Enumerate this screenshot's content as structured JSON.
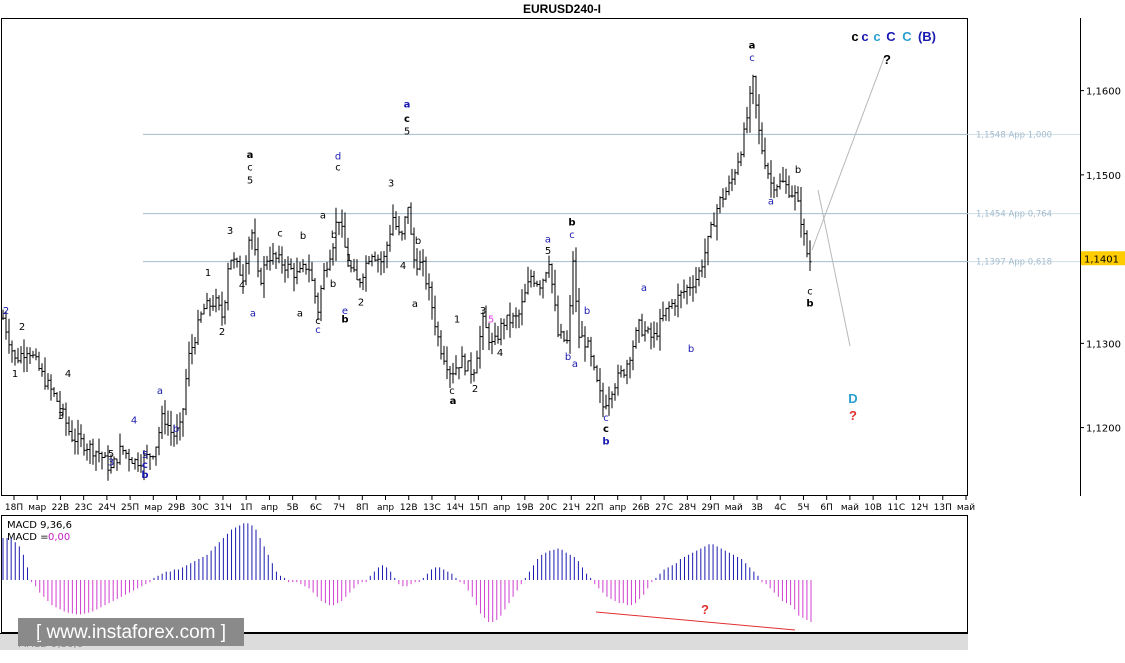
{
  "chart_data": {
    "type": "bar",
    "title": "EURUSD240-I",
    "price_axis": {
      "ylim": [
        1.112,
        1.1685
      ],
      "ticks": [
        "1,1200",
        "1,1300",
        "1,1400",
        "1,1500",
        "1,1600"
      ],
      "current": "1,1401"
    },
    "time_labels": [
      "18П",
      "мар",
      "22В",
      "23С",
      "24Ч",
      "25П",
      "мар",
      "29В",
      "30С",
      "31Ч",
      "1П",
      "апр",
      "5В",
      "6С",
      "7Ч",
      "8П",
      "апр",
      "12В",
      "13С",
      "14Ч",
      "15П",
      "апр",
      "19В",
      "20С",
      "21Ч",
      "22П",
      "апр",
      "26В",
      "27С",
      "28Ч",
      "29П",
      "май",
      "3В",
      "4С",
      "5Ч",
      "6П",
      "май",
      "10В",
      "11С",
      "12Ч",
      "13П",
      "май"
    ],
    "levels": [
      {
        "price": 1.1548,
        "label": "1,1548 App 1,000"
      },
      {
        "price": 1.1454,
        "label": "1,1454 App 0,764"
      },
      {
        "price": 1.1397,
        "label": "1,1397 App 0,618"
      }
    ],
    "price_path": [
      [
        0,
        1.133
      ],
      [
        12,
        1.128
      ],
      [
        25,
        1.1295
      ],
      [
        40,
        1.126
      ],
      [
        55,
        1.123
      ],
      [
        68,
        1.119
      ],
      [
        82,
        1.118
      ],
      [
        96,
        1.117
      ],
      [
        108,
        1.115
      ],
      [
        118,
        1.1175
      ],
      [
        132,
        1.116
      ],
      [
        145,
        1.1165
      ],
      [
        152,
        1.1175
      ],
      [
        160,
        1.1215
      ],
      [
        170,
        1.119
      ],
      [
        178,
        1.12
      ],
      [
        185,
        1.128
      ],
      [
        200,
        1.134
      ],
      [
        212,
        1.135
      ],
      [
        220,
        1.133
      ],
      [
        226,
        1.1405
      ],
      [
        240,
        1.138
      ],
      [
        248,
        1.144
      ],
      [
        256,
        1.137
      ],
      [
        265,
        1.1405
      ],
      [
        280,
        1.1395
      ],
      [
        295,
        1.138
      ],
      [
        305,
        1.1395
      ],
      [
        315,
        1.134
      ],
      [
        320,
        1.138
      ],
      [
        330,
        1.142
      ],
      [
        335,
        1.1455
      ],
      [
        345,
        1.1395
      ],
      [
        355,
        1.137
      ],
      [
        368,
        1.141
      ],
      [
        380,
        1.1395
      ],
      [
        390,
        1.145
      ],
      [
        398,
        1.142
      ],
      [
        405,
        1.1465
      ],
      [
        410,
        1.14
      ],
      [
        420,
        1.139
      ],
      [
        428,
        1.135
      ],
      [
        436,
        1.13
      ],
      [
        448,
        1.1265
      ],
      [
        458,
        1.128
      ],
      [
        470,
        1.1265
      ],
      [
        480,
        1.1325
      ],
      [
        490,
        1.1295
      ],
      [
        500,
        1.1325
      ],
      [
        515,
        1.133
      ],
      [
        528,
        1.138
      ],
      [
        538,
        1.137
      ],
      [
        546,
        1.14
      ],
      [
        555,
        1.131
      ],
      [
        565,
        1.13
      ],
      [
        570,
        1.14
      ],
      [
        575,
        1.131
      ],
      [
        584,
        1.13
      ],
      [
        592,
        1.126
      ],
      [
        600,
        1.1225
      ],
      [
        610,
        1.125
      ],
      [
        622,
        1.127
      ],
      [
        636,
        1.132
      ],
      [
        650,
        1.1305
      ],
      [
        664,
        1.134
      ],
      [
        680,
        1.136
      ],
      [
        695,
        1.138
      ],
      [
        705,
        1.142
      ],
      [
        715,
        1.1465
      ],
      [
        728,
        1.149
      ],
      [
        740,
        1.154
      ],
      [
        750,
        1.161
      ],
      [
        757,
        1.154
      ],
      [
        768,
        1.149
      ],
      [
        780,
        1.149
      ],
      [
        792,
        1.1475
      ],
      [
        797,
        1.1455
      ],
      [
        803,
        1.141
      ],
      [
        808,
        1.1395
      ]
    ],
    "wave_labels": [
      {
        "t": 3,
        "p": 1.1335,
        "text": "2",
        "c": "#1a1ab0"
      },
      {
        "t": 19,
        "p": 1.1316,
        "text": "2",
        "c": "#000"
      },
      {
        "t": 12,
        "p": 1.126,
        "text": "1",
        "c": "#000"
      },
      {
        "t": 65,
        "p": 1.126,
        "text": "4",
        "c": "#000"
      },
      {
        "t": 58,
        "p": 1.121,
        "text": "3",
        "c": "#000"
      },
      {
        "t": 131,
        "p": 1.1205,
        "text": "4",
        "c": "#1a1ab0"
      },
      {
        "t": 108,
        "p": 1.1165,
        "text": "5",
        "c": "#000"
      },
      {
        "t": 108,
        "p": 1.1155,
        "text": "3",
        "c": "#1a1ab0"
      },
      {
        "t": 142,
        "p": 1.1164,
        "text": "5",
        "c": "#1a1ab0"
      },
      {
        "t": 142,
        "p": 1.1152,
        "text": "c",
        "c": "#1a1ab0",
        "b": 1
      },
      {
        "t": 142,
        "p": 1.114,
        "text": "b",
        "c": "#1a1ab0",
        "b": 1
      },
      {
        "t": 157,
        "p": 1.124,
        "text": "a",
        "c": "#1a1ab0"
      },
      {
        "t": 173,
        "p": 1.1195,
        "text": "b",
        "c": "#1a1ab0"
      },
      {
        "t": 205,
        "p": 1.138,
        "text": "1",
        "c": "#000"
      },
      {
        "t": 219,
        "p": 1.131,
        "text": "2",
        "c": "#000"
      },
      {
        "t": 227,
        "p": 1.143,
        "text": "3",
        "c": "#000"
      },
      {
        "t": 239,
        "p": 1.1365,
        "text": "4",
        "c": "#000"
      },
      {
        "t": 247,
        "p": 1.152,
        "text": "a",
        "c": "#000",
        "b": 1
      },
      {
        "t": 247,
        "p": 1.1505,
        "text": "c",
        "c": "#000"
      },
      {
        "t": 247,
        "p": 1.149,
        "text": "5",
        "c": "#000"
      },
      {
        "t": 250,
        "p": 1.1332,
        "text": "a",
        "c": "#1a1ab0"
      },
      {
        "t": 277,
        "p": 1.1427,
        "text": "c",
        "c": "#000"
      },
      {
        "t": 300,
        "p": 1.1424,
        "text": "b",
        "c": "#000"
      },
      {
        "t": 297,
        "p": 1.1332,
        "text": "a",
        "c": "#000"
      },
      {
        "t": 315,
        "p": 1.1323,
        "text": "c",
        "c": "#000"
      },
      {
        "t": 315,
        "p": 1.1312,
        "text": "c",
        "c": "#1a1ab0"
      },
      {
        "t": 320,
        "p": 1.1448,
        "text": "a",
        "c": "#000"
      },
      {
        "t": 331,
        "p": 1.1425,
        "text": "b",
        "c": "#000"
      },
      {
        "t": 330,
        "p": 1.1367,
        "text": "b",
        "c": "#000"
      },
      {
        "t": 335,
        "p": 1.1518,
        "text": "d",
        "c": "#1a1ab0"
      },
      {
        "t": 335,
        "p": 1.1505,
        "text": "c",
        "c": "#000"
      },
      {
        "t": 346,
        "p": 1.1398,
        "text": "1",
        "c": "#000"
      },
      {
        "t": 342,
        "p": 1.1335,
        "text": "e",
        "c": "#1a1ab0"
      },
      {
        "t": 342,
        "p": 1.1325,
        "text": "b",
        "c": "#000",
        "b": 1
      },
      {
        "t": 358,
        "p": 1.1345,
        "text": "2",
        "c": "#000"
      },
      {
        "t": 388,
        "p": 1.1486,
        "text": "3",
        "c": "#000"
      },
      {
        "t": 404,
        "p": 1.158,
        "text": "a",
        "c": "#1a1ab0",
        "b": 1
      },
      {
        "t": 404,
        "p": 1.1563,
        "text": "c",
        "c": "#000",
        "b": 1
      },
      {
        "t": 404,
        "p": 1.1548,
        "text": "5",
        "c": "#000"
      },
      {
        "t": 415,
        "p": 1.1418,
        "text": "b",
        "c": "#000"
      },
      {
        "t": 400,
        "p": 1.1388,
        "text": "4",
        "c": "#000"
      },
      {
        "t": 412,
        "p": 1.1343,
        "text": "a",
        "c": "#000"
      },
      {
        "t": 454,
        "p": 1.1325,
        "text": "1",
        "c": "#000"
      },
      {
        "t": 449,
        "p": 1.124,
        "text": "c",
        "c": "#000"
      },
      {
        "t": 450,
        "p": 1.1228,
        "text": "a",
        "c": "#000",
        "b": 1
      },
      {
        "t": 472,
        "p": 1.1242,
        "text": "2",
        "c": "#000"
      },
      {
        "t": 480,
        "p": 1.1335,
        "text": "3",
        "c": "#000"
      },
      {
        "t": 488,
        "p": 1.1325,
        "text": "5",
        "c": "#e040e0"
      },
      {
        "t": 497,
        "p": 1.1285,
        "text": "4",
        "c": "#000"
      },
      {
        "t": 545,
        "p": 1.142,
        "text": "a",
        "c": "#1a1ab0"
      },
      {
        "t": 545,
        "p": 1.1406,
        "text": "5",
        "c": "#000"
      },
      {
        "t": 569,
        "p": 1.144,
        "text": "b",
        "c": "#000",
        "b": 1
      },
      {
        "t": 569,
        "p": 1.1425,
        "text": "c",
        "c": "#1a1ab0"
      },
      {
        "t": 584,
        "p": 1.1335,
        "text": "b",
        "c": "#1a1ab0"
      },
      {
        "t": 565,
        "p": 1.128,
        "text": "b",
        "c": "#1a1ab0"
      },
      {
        "t": 572,
        "p": 1.1272,
        "text": "a",
        "c": "#1a1ab0"
      },
      {
        "t": 603,
        "p": 1.1208,
        "text": "c",
        "c": "#1a1ab0"
      },
      {
        "t": 603,
        "p": 1.1195,
        "text": "c",
        "c": "#000",
        "b": 1
      },
      {
        "t": 603,
        "p": 1.118,
        "text": "b",
        "c": "#1a1ab0",
        "b": 1
      },
      {
        "t": 641,
        "p": 1.1362,
        "text": "a",
        "c": "#1a1ab0"
      },
      {
        "t": 688,
        "p": 1.129,
        "text": "b",
        "c": "#1a1ab0"
      },
      {
        "t": 749,
        "p": 1.165,
        "text": "a",
        "c": "#000",
        "b": 1
      },
      {
        "t": 749,
        "p": 1.1635,
        "text": "c",
        "c": "#1a1ab0"
      },
      {
        "t": 795,
        "p": 1.1502,
        "text": "b",
        "c": "#000"
      },
      {
        "t": 768,
        "p": 1.1465,
        "text": "a",
        "c": "#1a1ab0"
      },
      {
        "t": 807,
        "p": 1.1358,
        "text": "c",
        "c": "#000"
      },
      {
        "t": 807,
        "p": 1.1344,
        "text": "b",
        "c": "#000",
        "b": 1
      }
    ],
    "scenario": {
      "top_labels": [
        {
          "text": "c",
          "c": "#000",
          "x": 855
        },
        {
          "text": "c",
          "c": "#1a1ab0",
          "x": 865
        },
        {
          "text": "c",
          "c": "#2aa0d0",
          "x": 877
        },
        {
          "text": "C",
          "c": "#1a1ab0",
          "x": 891
        },
        {
          "text": "C",
          "c": "#2aa0d0",
          "x": 907
        },
        {
          "text": "(B)",
          "c": "#1a1ab0",
          "x": 927
        }
      ],
      "top_question": "?",
      "bottom_label": "D",
      "bottom_question": "?"
    },
    "macd": {
      "label1": "MACD 9,36,6",
      "label2": "MACD =",
      "label2_value": "0,00",
      "divergence_question": "?",
      "values": [
        1.0,
        1.0,
        1.0,
        0.9,
        0.8,
        0.6,
        0.3,
        -0.05,
        -0.15,
        -0.3,
        -0.4,
        -0.5,
        -0.6,
        -0.65,
        -0.7,
        -0.75,
        -0.78,
        -0.8,
        -0.82,
        -0.82,
        -0.8,
        -0.78,
        -0.75,
        -0.7,
        -0.65,
        -0.6,
        -0.55,
        -0.5,
        -0.45,
        -0.4,
        -0.35,
        -0.3,
        -0.25,
        -0.2,
        -0.15,
        -0.1,
        -0.05,
        0.05,
        0.1,
        0.15,
        0.2,
        0.2,
        0.25,
        0.25,
        0.3,
        0.35,
        0.4,
        0.45,
        0.5,
        0.55,
        0.6,
        0.7,
        0.8,
        0.9,
        1.0,
        1.1,
        1.2,
        1.25,
        1.3,
        1.35,
        1.35,
        1.3,
        1.2,
        1.0,
        0.8,
        0.6,
        0.4,
        0.2,
        0.1,
        0.05,
        -0.05,
        -0.05,
        -0.05,
        -0.1,
        -0.15,
        -0.2,
        -0.3,
        -0.4,
        -0.5,
        -0.55,
        -0.6,
        -0.6,
        -0.55,
        -0.5,
        -0.4,
        -0.3,
        -0.2,
        -0.1,
        -0.05,
        -0.05,
        0.1,
        0.2,
        0.3,
        0.35,
        0.3,
        0.2,
        0.05,
        -0.1,
        -0.15,
        -0.15,
        -0.1,
        -0.05,
        -0.05,
        0.05,
        0.15,
        0.25,
        0.3,
        0.3,
        0.25,
        0.2,
        0.15,
        0.05,
        -0.05,
        -0.1,
        -0.25,
        -0.4,
        -0.6,
        -0.8,
        -0.9,
        -1.0,
        -1.0,
        -0.95,
        -0.85,
        -0.7,
        -0.55,
        -0.4,
        -0.25,
        -0.1,
        0.05,
        0.2,
        0.35,
        0.5,
        0.6,
        0.65,
        0.7,
        0.72,
        0.75,
        0.72,
        0.65,
        0.6,
        0.55,
        0.45,
        0.3,
        0.15,
        0.05,
        -0.1,
        -0.2,
        -0.3,
        -0.4,
        -0.45,
        -0.5,
        -0.55,
        -0.55,
        -0.6,
        -0.6,
        -0.55,
        -0.45,
        -0.35,
        -0.2,
        -0.05,
        0.05,
        0.15,
        0.25,
        0.3,
        0.35,
        0.4,
        0.5,
        0.55,
        0.6,
        0.65,
        0.7,
        0.75,
        0.8,
        0.85,
        0.85,
        0.8,
        0.75,
        0.7,
        0.65,
        0.6,
        0.55,
        0.5,
        0.4,
        0.3,
        0.2,
        0.1,
        -0.05,
        -0.1,
        -0.2,
        -0.3,
        -0.4,
        -0.5,
        -0.55,
        -0.6,
        -0.7,
        -0.85,
        -0.9,
        -0.95,
        -1.0
      ]
    },
    "watermark": "[ www.instaforex.com ]",
    "bottom_strip": "MACD 9,36,6"
  }
}
